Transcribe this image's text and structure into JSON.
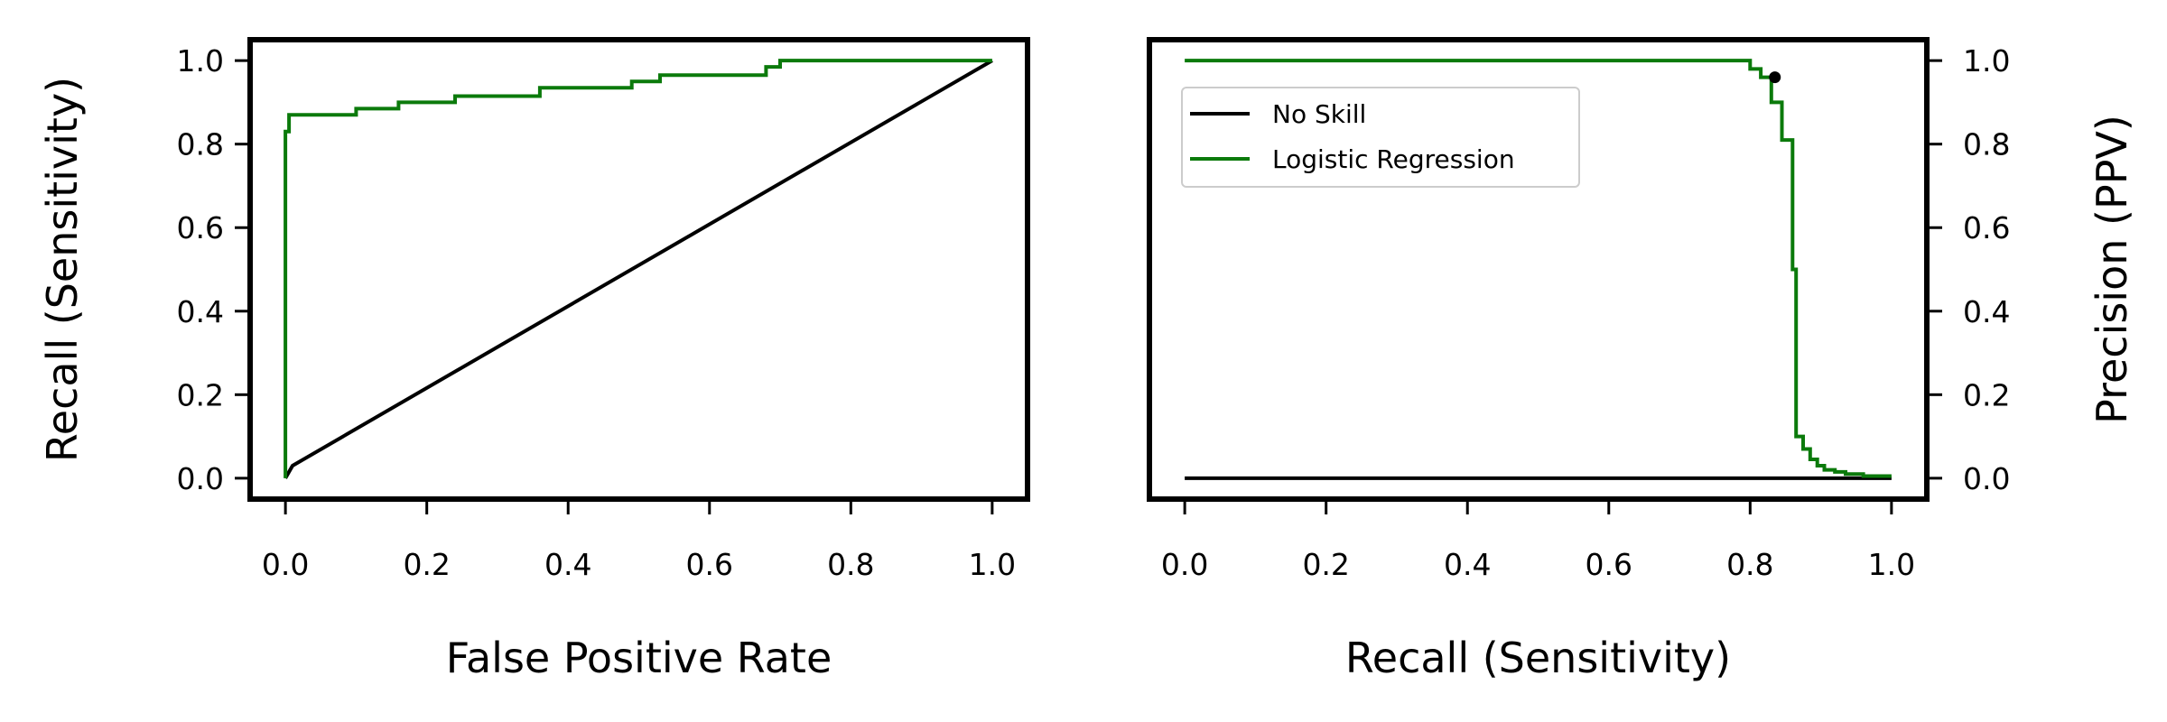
{
  "chart_data": [
    {
      "type": "line",
      "title": "",
      "xlabel": "False Positive Rate",
      "ylabel": "Recall (Sensitivity)",
      "xlim": [
        -0.05,
        1.05
      ],
      "ylim": [
        -0.05,
        1.05
      ],
      "xticks": [
        "0.0",
        "0.2",
        "0.4",
        "0.6",
        "0.8",
        "1.0"
      ],
      "yticks": [
        "0.0",
        "0.2",
        "0.4",
        "0.6",
        "0.8",
        "1.0"
      ],
      "ylabel_side": "left",
      "grid": false,
      "legend": null,
      "series": [
        {
          "color": "#000000",
          "x": [
            0.0,
            0.01,
            1.0
          ],
          "y": [
            0.0,
            0.03,
            1.0
          ]
        },
        {
          "color": "#0b7a0b",
          "x": [
            0.0,
            0.0,
            0.005,
            0.005,
            0.1,
            0.1,
            0.16,
            0.16,
            0.24,
            0.24,
            0.36,
            0.36,
            0.49,
            0.49,
            0.53,
            0.53,
            0.68,
            0.68,
            0.7,
            0.7,
            1.0
          ],
          "y": [
            0.0,
            0.83,
            0.83,
            0.87,
            0.87,
            0.885,
            0.885,
            0.9,
            0.9,
            0.915,
            0.915,
            0.935,
            0.935,
            0.95,
            0.95,
            0.965,
            0.965,
            0.985,
            0.985,
            1.0,
            1.0
          ]
        }
      ]
    },
    {
      "type": "line",
      "title": "",
      "xlabel": "Recall (Sensitivity)",
      "ylabel": "Precision (PPV)",
      "xlim": [
        -0.05,
        1.05
      ],
      "ylim": [
        -0.05,
        1.05
      ],
      "xticks": [
        "0.0",
        "0.2",
        "0.4",
        "0.6",
        "0.8",
        "1.0"
      ],
      "yticks": [
        "0.0",
        "0.2",
        "0.4",
        "0.6",
        "0.8",
        "1.0"
      ],
      "ylabel_side": "right",
      "grid": false,
      "legend": "upper-left",
      "marker": {
        "x": 0.835,
        "y": 0.96,
        "color": "#000000"
      },
      "series": [
        {
          "name": "No Skill",
          "color": "#000000",
          "x": [
            0.0,
            1.0
          ],
          "y": [
            0.0,
            0.0
          ]
        },
        {
          "name": "Logistic Regression",
          "color": "#0b7a0b",
          "x": [
            0.0,
            0.8,
            0.8,
            0.815,
            0.815,
            0.83,
            0.83,
            0.845,
            0.845,
            0.86,
            0.86,
            0.865,
            0.865,
            0.875,
            0.875,
            0.885,
            0.885,
            0.895,
            0.895,
            0.905,
            0.905,
            0.92,
            0.92,
            0.935,
            0.935,
            0.96,
            0.96,
            1.0
          ],
          "y": [
            1.0,
            1.0,
            0.98,
            0.98,
            0.96,
            0.96,
            0.9,
            0.9,
            0.81,
            0.81,
            0.5,
            0.5,
            0.1,
            0.1,
            0.07,
            0.07,
            0.045,
            0.045,
            0.03,
            0.03,
            0.02,
            0.02,
            0.015,
            0.015,
            0.01,
            0.01,
            0.005,
            0.005
          ]
        }
      ]
    }
  ]
}
